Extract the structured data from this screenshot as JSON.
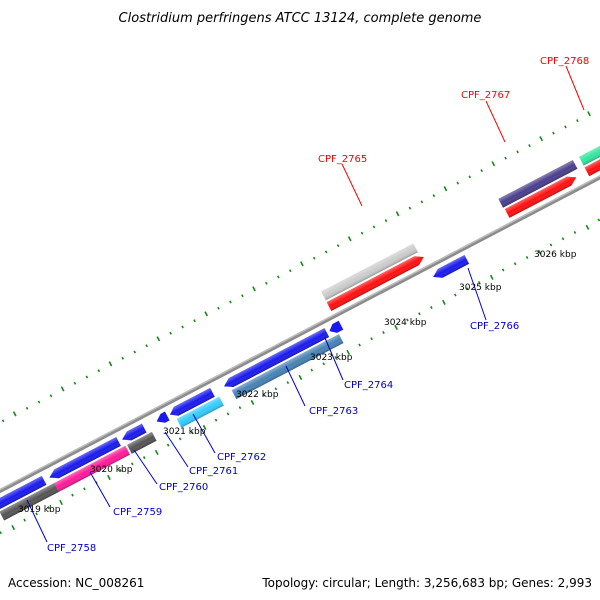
{
  "title": "Clostridium perfringens ATCC 13124, complete genome",
  "footer": {
    "accession_label": "Accession: NC_008261",
    "topology_label": "Topology: circular; Length: 3,256,683 bp; Genes: 2,993"
  },
  "colors": {
    "forward_label": "#ff0000",
    "reverse_label": "#0000cc",
    "tick": "#138a13",
    "backbone": "#8c8c8c"
  },
  "ticks": [
    "3019 kbp",
    "3020 kbp",
    "3021 kbp",
    "3022 kbp",
    "3023 kbp",
    "3024 kbp",
    "3025 kbp",
    "3026 kbp"
  ],
  "genes": [
    {
      "label": "CPF_2765",
      "strand": "forward",
      "color": "#cccccc"
    },
    {
      "label": "CPF_2767",
      "strand": "forward",
      "color": "#4a3f8c"
    },
    {
      "label": "CPF_2768",
      "strand": "forward",
      "color": "#33e6a0"
    },
    {
      "label": "CPF_2758",
      "strand": "reverse",
      "color": "#1a1aee"
    },
    {
      "label": "CPF_2759",
      "strand": "reverse",
      "color": "#ff1a99"
    },
    {
      "label": "CPF_2760",
      "strand": "reverse",
      "color": "#1a1aee"
    },
    {
      "label": "CPF_2761",
      "strand": "reverse",
      "color": "#1a1aee"
    },
    {
      "label": "CPF_2762",
      "strand": "reverse",
      "color": "#33ccff"
    },
    {
      "label": "CPF_2763",
      "strand": "reverse",
      "color": "#4682b4"
    },
    {
      "label": "CPF_2764",
      "strand": "reverse",
      "color": "#1a1aee"
    },
    {
      "label": "CPF_2766",
      "strand": "reverse",
      "color": "#1a1aee"
    }
  ]
}
